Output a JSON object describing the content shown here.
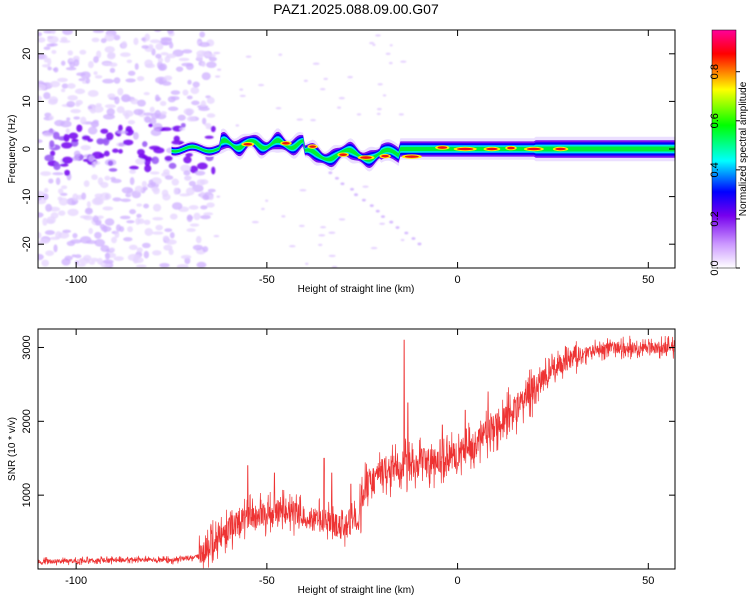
{
  "title": "PAZ1.2025.088.09.00.G07",
  "chart_data": [
    {
      "type": "heatmap",
      "name": "spectrogram",
      "xlabel": "Height of straight line (km)",
      "ylabel": "Frequency (Hz)",
      "xlim": [
        -110,
        57
      ],
      "ylim": [
        -25,
        25
      ],
      "xticks": [
        -100,
        -50,
        0,
        50
      ],
      "yticks": [
        20,
        10,
        0,
        -10,
        -20
      ],
      "colorbar": {
        "label": "Normalized spectral amplitude",
        "range": [
          0,
          0.97
        ],
        "ticks": [
          0.0,
          0.2,
          0.4,
          0.6,
          0.8
        ],
        "colormap": [
          "#ffffff",
          "#cc99ff",
          "#7700ee",
          "#0000ff",
          "#00ffff",
          "#00ff00",
          "#ffff00",
          "#ff0000",
          "#ff0099"
        ]
      }
    },
    {
      "type": "line",
      "name": "snr",
      "xlabel": "Height of straight line (km)",
      "ylabel": "SNR (10 * v/v)",
      "xlim": [
        -110,
        57
      ],
      "ylim": [
        0,
        3250
      ],
      "xticks": [
        -100,
        -50,
        0,
        50
      ],
      "yticks": [
        1000,
        2000,
        3000
      ],
      "color": "#ee3333",
      "trend": [
        [
          -110,
          100
        ],
        [
          -90,
          120
        ],
        [
          -75,
          120
        ],
        [
          -68,
          170
        ],
        [
          -64,
          350
        ],
        [
          -60,
          550
        ],
        [
          -55,
          700
        ],
        [
          -50,
          750
        ],
        [
          -45,
          800
        ],
        [
          -40,
          700
        ],
        [
          -35,
          650
        ],
        [
          -30,
          550
        ],
        [
          -26,
          700
        ],
        [
          -24,
          1150
        ],
        [
          -20,
          1300
        ],
        [
          -15,
          1400
        ],
        [
          -10,
          1450
        ],
        [
          -5,
          1450
        ],
        [
          0,
          1550
        ],
        [
          5,
          1700
        ],
        [
          10,
          1950
        ],
        [
          15,
          2150
        ],
        [
          20,
          2450
        ],
        [
          25,
          2700
        ],
        [
          30,
          2850
        ],
        [
          35,
          2950
        ],
        [
          40,
          3000
        ],
        [
          45,
          3000
        ],
        [
          50,
          3000
        ],
        [
          57,
          3000
        ]
      ],
      "spikes": [
        [
          -55,
          1400
        ],
        [
          -48,
          1300
        ],
        [
          -35,
          1500
        ],
        [
          -33,
          1300
        ],
        [
          -28,
          1150
        ],
        [
          -14,
          3100
        ],
        [
          -13,
          2250
        ],
        [
          -4,
          1950
        ],
        [
          2,
          2150
        ],
        [
          8,
          2400
        ]
      ]
    }
  ]
}
